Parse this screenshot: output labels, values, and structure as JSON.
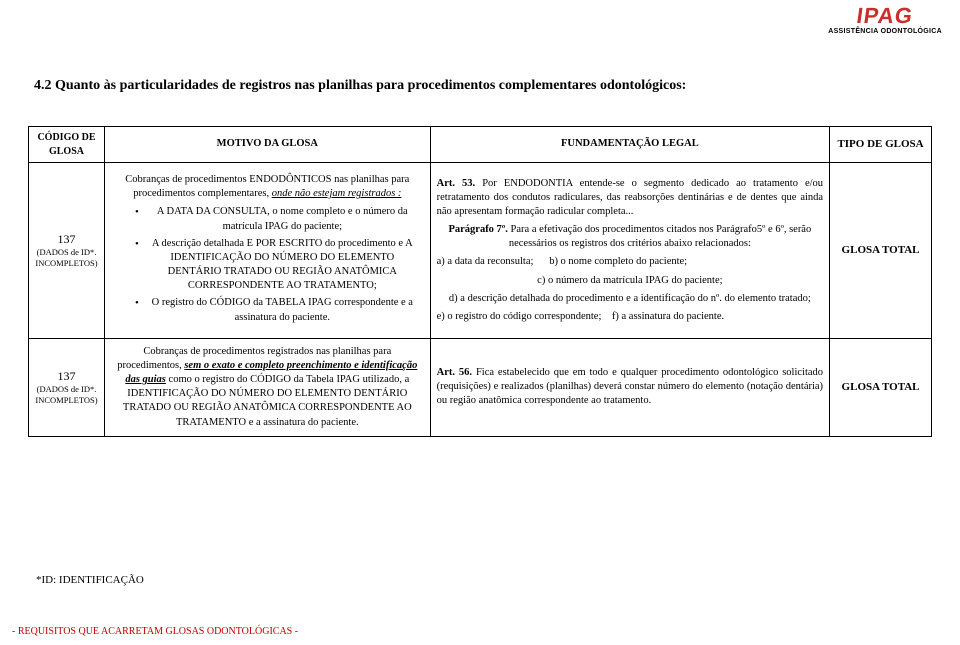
{
  "logo": {
    "brand": "IPAG",
    "subtitle": "ASSISTÊNCIA ODONTOLÓGICA"
  },
  "section_title": "4.2 Quanto às particularidades de registros nas planilhas para procedimentos complementares odontológicos:",
  "headers": {
    "code": "CÓDIGO DE GLOSA",
    "motive": "MOTIVO DA GLOSA",
    "fund": "FUNDAMENTAÇÃO LEGAL",
    "type": "TIPO DE GLOSA"
  },
  "rows": [
    {
      "code": "137",
      "code_sub": "(DADOS de ID*. INCOMPLETOS)",
      "motive": {
        "lead_a": "Cobranças de procedimentos ENDODÔNTICOS nas planilhas para procedimentos complementares, ",
        "lead_u": "onde não estejam registrados :",
        "bullets": [
          "A DATA DA CONSULTA, o nome completo e o número da matrícula IPAG do paciente;",
          "A descrição detalhada E POR ESCRITO do procedimento e A IDENTIFICAÇÃO DO NÚMERO DO ELEMENTO DENTÁRIO TRATADO OU REGIÃO ANATÔMICA CORRESPONDENTE AO TRATAMENTO;",
          "O registro do CÓDIGO da TABELA IPAG correspondente e a assinatura do paciente."
        ]
      },
      "fund": {
        "art53_b": "Art. 53.",
        "art53_t": " Por ENDODONTIA entende-se o segmento dedicado ao tratamento e/ou retratamento dos condutos radiculares, das reabsorções dentinárias e de dentes que ainda não apresentam formação radicular completa...",
        "p7_b": "Parágrafo 7º.",
        "p7_t": " Para a efetivação dos procedimentos citados nos Parágrafo5º e 6º, serão necessários os registros dos critérios abaixo relacionados:",
        "la": "a) a data da reconsulta;",
        "lb": "b) o nome completo do paciente;",
        "lc": "c) o número da matrícula IPAG do paciente;",
        "ld": "d) a descrição detalhada do procedimento e a identificação do nº. do elemento tratado;",
        "le": "e) o registro do código correspondente;",
        "lf": "f) a assinatura do paciente."
      },
      "type": "GLOSA TOTAL"
    },
    {
      "code": "137",
      "code_sub": "(DADOS de ID*. INCOMPLETOS)",
      "motive_full_pre": "Cobranças de procedimentos registrados nas planilhas para procedimentos, ",
      "motive_full_bu": "sem o exato e completo preenchimento e identificação das guias",
      "motive_full_post": " como o registro do CÓDIGO da Tabela IPAG utilizado, a IDENTIFICAÇÃO DO NÚMERO DO ELEMENTO DENTÁRIO TRATADO OU REGIÃO ANATÔMICA CORRESPONDENTE AO TRATAMENTO e a assinatura do paciente.",
      "fund_art56_b": "Art. 56.",
      "fund_art56_t": " Fica estabelecido que em todo e qualquer procedimento odontológico solicitado (requisições) e realizados (planilhas) deverá constar número do elemento (notação dentária) ou região anatômica correspondente ao tratamento.",
      "type": "GLOSA TOTAL"
    }
  ],
  "id_note": "*ID: IDENTIFICAÇÃO",
  "footer": "- REQUISITOS QUE ACARRETAM GLOSAS ODONTOLÓGICAS -"
}
